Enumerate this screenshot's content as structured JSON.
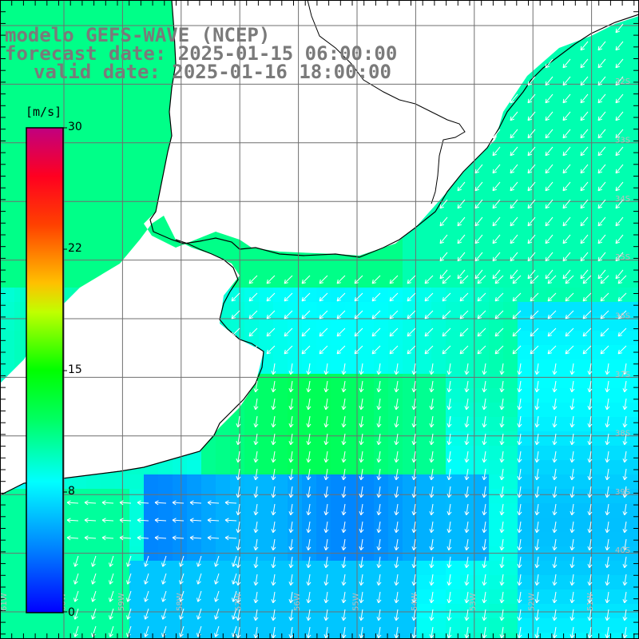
{
  "title": {
    "line1": "modelo GEFS-WAVE (NCEP)",
    "line2": "forecast date: 2025-01-15 06:00:00",
    "line3": "valid date: 2025-01-16 18:00:00"
  },
  "colorbar": {
    "units": "[m/s]",
    "ticks": [
      "30",
      "22",
      "15",
      "8",
      "0"
    ],
    "min": 0,
    "max": 30,
    "stops": [
      "#0000ff",
      "#00a0ff",
      "#00ffff",
      "#00ff40",
      "#00ff00",
      "#ffff00",
      "#ff8000",
      "#ff0000",
      "#c00080"
    ]
  },
  "grid": {
    "lat_labels": [
      "32S",
      "33S",
      "34S",
      "35S",
      "36S",
      "37S",
      "38S",
      "39S",
      "40S"
    ],
    "lon_labels": [
      "61W",
      "60W",
      "59W",
      "58W",
      "57W",
      "56W",
      "55W",
      "54W",
      "53W",
      "52W",
      "51W"
    ]
  },
  "colors": {
    "land": "#ffffff",
    "coast": "#000000",
    "grid": "#6f6f6f",
    "title": "#7a7a7a",
    "vector": "#ffffff"
  }
}
